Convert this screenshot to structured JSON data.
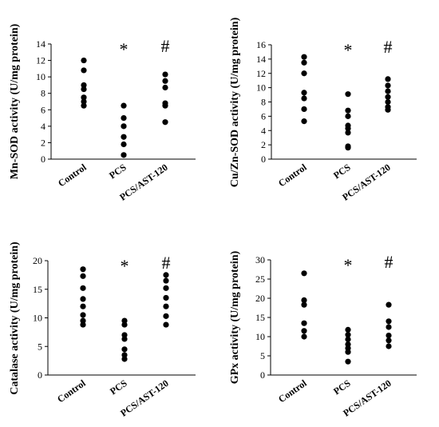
{
  "chart_data": [
    {
      "type": "scatter",
      "ylabel": "Mn-SOD activity (U/mg protein)",
      "ylim": [
        0,
        14
      ],
      "yticks": [
        0,
        2,
        4,
        6,
        8,
        10,
        12,
        14
      ],
      "categories": [
        "Control",
        "PCS",
        "PCS/AST-120"
      ],
      "values": [
        [
          12.0,
          10.8,
          9.0,
          8.5,
          7.5,
          7.0,
          6.5
        ],
        [
          6.5,
          5.0,
          4.0,
          2.7,
          1.8,
          0.5
        ],
        [
          10.3,
          9.5,
          8.7,
          6.8,
          6.5,
          4.5
        ]
      ],
      "annotations": [
        "",
        "*",
        "#"
      ]
    },
    {
      "type": "scatter",
      "ylabel": "Cu/Zn-SOD activity (U/mg protein)",
      "ylim": [
        0,
        16
      ],
      "yticks": [
        0,
        2,
        4,
        6,
        8,
        10,
        12,
        14,
        16
      ],
      "categories": [
        "Control",
        "PCS",
        "PCS/AST-120"
      ],
      "values": [
        [
          14.3,
          13.5,
          12.0,
          9.3,
          8.5,
          7.0,
          5.3
        ],
        [
          9.1,
          6.8,
          6.0,
          4.7,
          4.3,
          3.7,
          1.8,
          1.6
        ],
        [
          11.2,
          10.3,
          9.5,
          8.7,
          8.0,
          7.3,
          6.9
        ]
      ],
      "annotations": [
        "",
        "*",
        "#"
      ]
    },
    {
      "type": "scatter",
      "ylabel": "Catalase activity (U/mg protein)",
      "ylim": [
        0,
        20
      ],
      "yticks": [
        0,
        5,
        10,
        15,
        20
      ],
      "categories": [
        "Control",
        "PCS",
        "PCS/AST-120"
      ],
      "values": [
        [
          18.5,
          17.3,
          15.2,
          13.3,
          12.0,
          10.5,
          9.5,
          8.8
        ],
        [
          9.5,
          8.8,
          7.0,
          6.3,
          4.5,
          3.5,
          2.8
        ],
        [
          17.5,
          16.5,
          15.2,
          13.5,
          12.0,
          10.3,
          8.8
        ]
      ],
      "annotations": [
        "",
        "*",
        "#"
      ]
    },
    {
      "type": "scatter",
      "ylabel": "GPx activity (U/mg protein)",
      "ylim": [
        0,
        30
      ],
      "yticks": [
        0,
        5,
        10,
        15,
        20,
        25,
        30
      ],
      "categories": [
        "Control",
        "PCS",
        "PCS/AST-120"
      ],
      "values": [
        [
          26.5,
          19.5,
          18.3,
          13.5,
          11.5,
          10.0
        ],
        [
          11.8,
          10.5,
          9.3,
          8.0,
          7.0,
          6.0,
          3.5
        ],
        [
          18.3,
          14.0,
          12.5,
          10.3,
          9.0,
          7.5
        ]
      ],
      "annotations": [
        "",
        "*",
        "#"
      ]
    }
  ]
}
